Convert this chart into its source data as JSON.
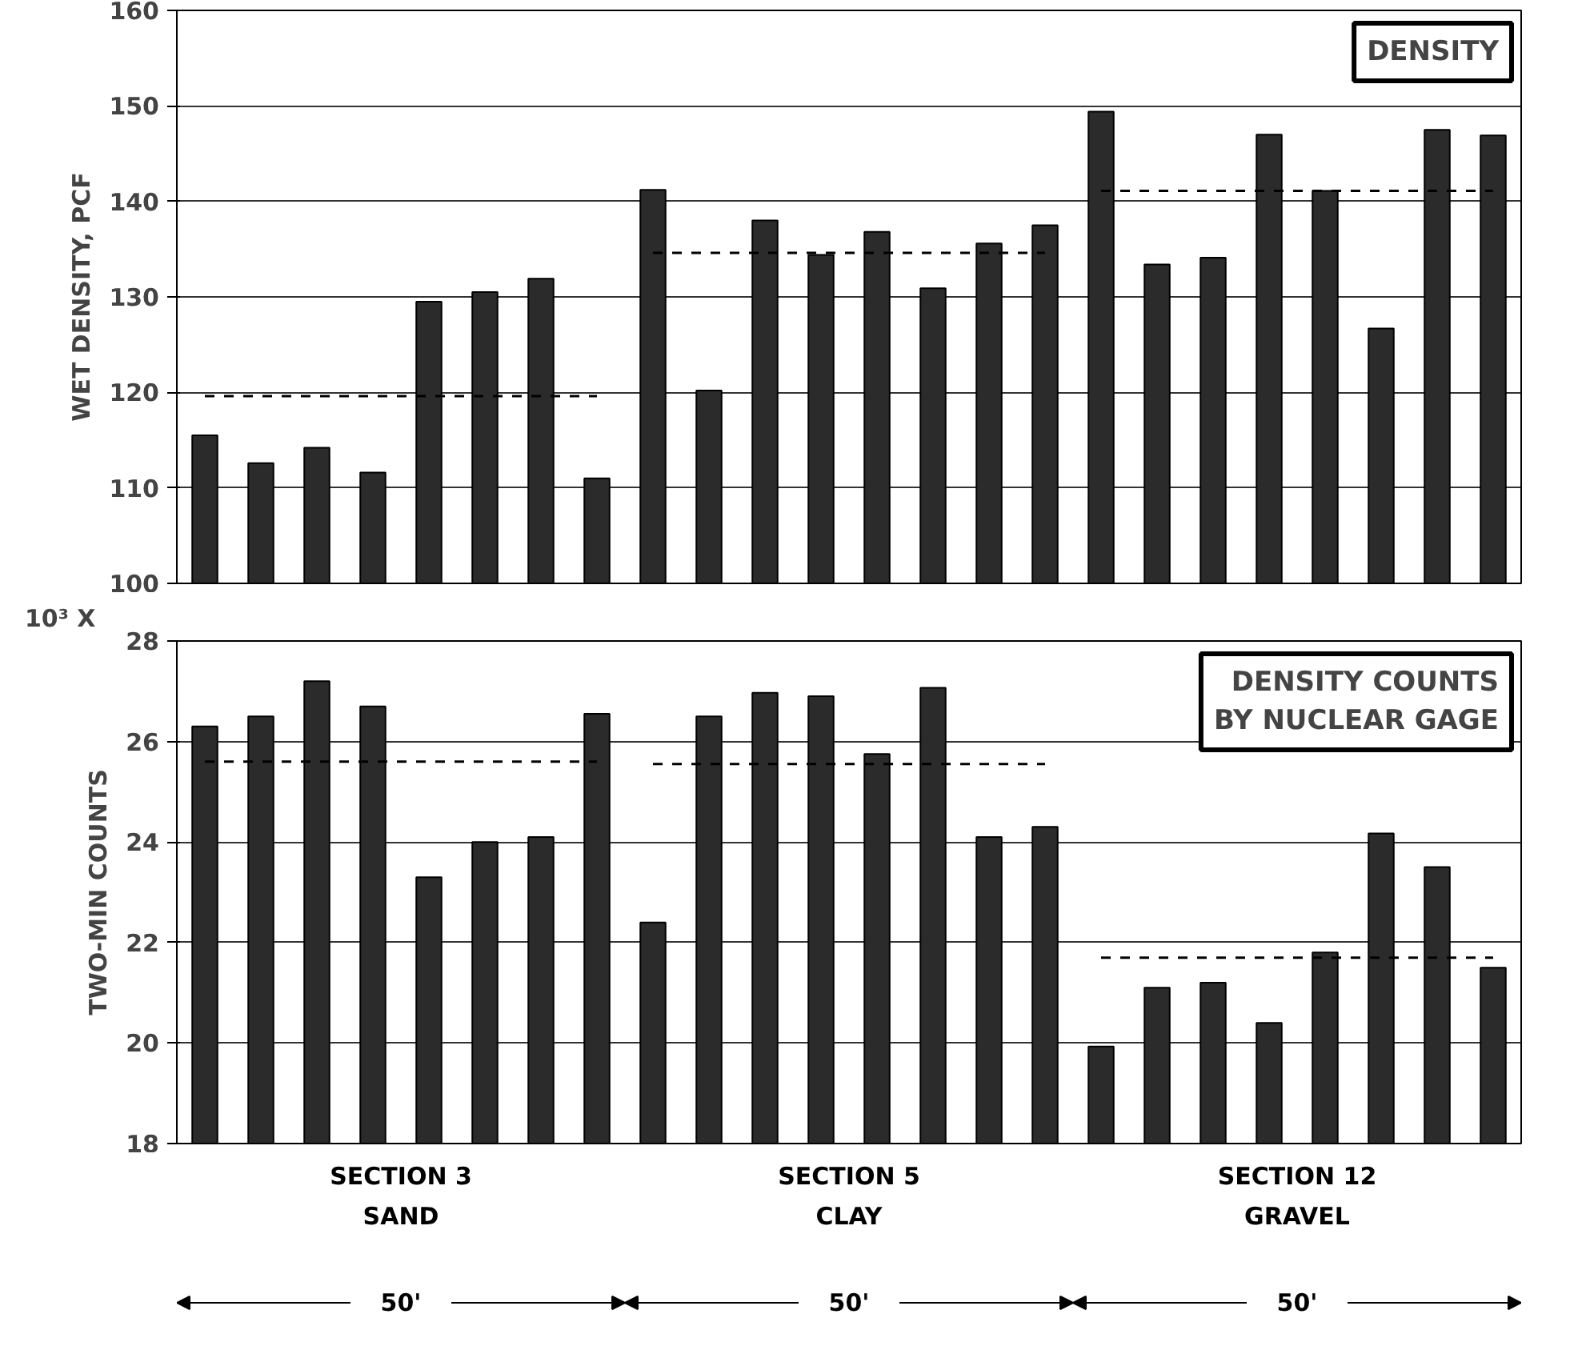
{
  "chart_data": [
    {
      "type": "bar",
      "title": "DENSITY",
      "ylabel": "WET DENSITY, PCF",
      "categories": [
        null,
        null,
        null,
        null,
        null,
        null,
        null,
        null,
        null,
        null,
        null,
        null,
        null,
        null,
        null,
        null,
        null,
        null,
        null,
        null,
        null,
        null,
        null,
        null
      ],
      "ylim": [
        100,
        160
      ],
      "yticks": [
        100,
        110,
        120,
        130,
        140,
        150,
        160
      ],
      "grid": "y",
      "series": [
        {
          "color": "#2b2b2b",
          "values": [
            115.5,
            112.6,
            114.2,
            111.6,
            129.5,
            130.5,
            131.9,
            111.0,
            141.2,
            120.2,
            138.0,
            134.4,
            136.8,
            130.9,
            135.6,
            137.5,
            149.4,
            133.4,
            134.1,
            147.0,
            141.1,
            126.7,
            147.5,
            146.9
          ]
        },
        {
          "type": "line",
          "line_style": "dashed",
          "color": "#000000",
          "values": [
            119.6,
            119.6,
            119.6,
            119.6,
            119.6,
            119.6,
            119.6,
            119.6,
            null,
            null,
            null,
            null,
            null,
            null,
            null,
            null,
            null,
            null,
            null,
            null,
            null,
            null,
            null,
            null
          ]
        },
        {
          "type": "line",
          "line_style": "dashed",
          "color": "#000000",
          "values": [
            null,
            null,
            null,
            null,
            null,
            null,
            null,
            null,
            134.6,
            134.6,
            134.6,
            134.6,
            134.6,
            134.6,
            134.6,
            134.6,
            null,
            null,
            null,
            null,
            null,
            null,
            null,
            null
          ]
        },
        {
          "type": "line",
          "line_style": "dashed",
          "color": "#000000",
          "values": [
            null,
            null,
            null,
            null,
            null,
            null,
            null,
            null,
            null,
            null,
            null,
            null,
            null,
            null,
            null,
            null,
            141.1,
            141.1,
            141.1,
            141.1,
            141.1,
            141.1,
            141.1,
            141.1
          ]
        }
      ]
    },
    {
      "type": "bar",
      "title": "DENSITY COUNTS\nBY NUCLEAR GAGE",
      "ylabel": "TWO-MIN COUNTS",
      "categories": [
        null,
        null,
        null,
        null,
        null,
        null,
        null,
        null,
        null,
        null,
        null,
        null,
        null,
        null,
        null,
        null,
        null,
        null,
        null,
        null,
        null,
        null,
        null,
        null
      ],
      "ylim": [
        18,
        28
      ],
      "yticks": [
        18,
        20,
        22,
        24,
        26,
        28
      ],
      "grid": "y",
      "annotations": [
        "10³ X",
        "SECTION 3\nSAND",
        "SECTION 5\nCLAY",
        "SECTION 12\nGRAVEL",
        "50'",
        "50'",
        "50'"
      ],
      "series": [
        {
          "color": "#2b2b2b",
          "values": [
            26.3,
            26.5,
            27.2,
            26.7,
            23.3,
            24.0,
            24.1,
            26.55,
            22.4,
            26.5,
            26.97,
            26.9,
            25.75,
            27.07,
            24.1,
            24.3,
            19.93,
            21.1,
            21.2,
            20.4,
            21.8,
            24.17,
            23.5,
            21.5
          ]
        },
        {
          "type": "line",
          "line_style": "dashed",
          "color": "#000000",
          "values": [
            25.6,
            25.6,
            25.6,
            25.6,
            25.6,
            25.6,
            25.6,
            25.6,
            null,
            null,
            null,
            null,
            null,
            null,
            null,
            null,
            null,
            null,
            null,
            null,
            null,
            null,
            null,
            null
          ]
        },
        {
          "type": "line",
          "line_style": "dashed",
          "color": "#000000",
          "values": [
            null,
            null,
            null,
            null,
            null,
            null,
            null,
            null,
            25.55,
            25.55,
            25.55,
            25.55,
            25.55,
            25.55,
            25.55,
            25.55,
            null,
            null,
            null,
            null,
            null,
            null,
            null,
            null
          ]
        },
        {
          "type": "line",
          "line_style": "dashed",
          "color": "#000000",
          "values": [
            null,
            null,
            null,
            null,
            null,
            null,
            null,
            null,
            null,
            null,
            null,
            null,
            null,
            null,
            null,
            null,
            21.7,
            21.7,
            21.7,
            21.7,
            21.7,
            21.7,
            21.7,
            21.7
          ]
        }
      ]
    }
  ]
}
